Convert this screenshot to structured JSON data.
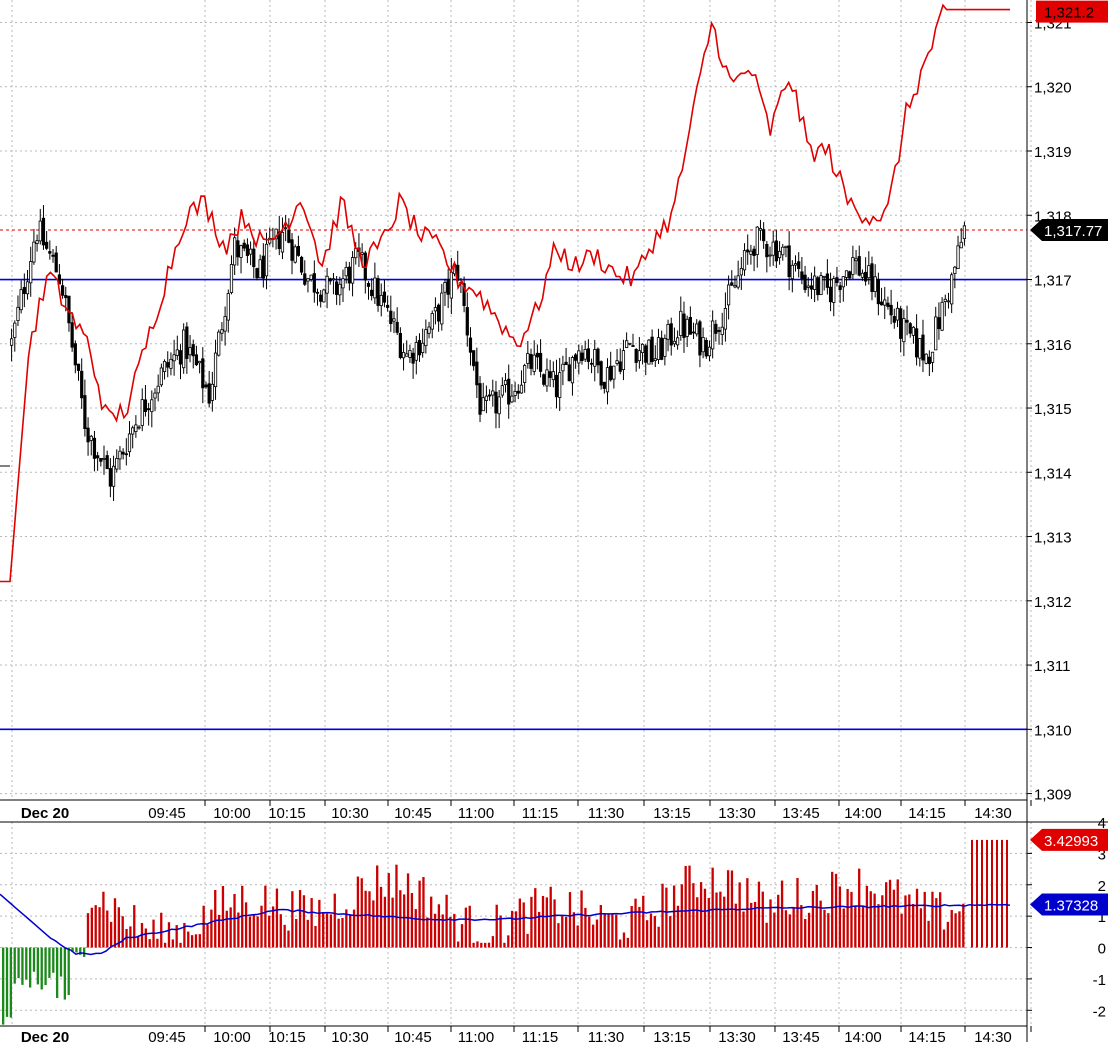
{
  "colors": {
    "background": "#ffffff",
    "grid": "#b8b8b8",
    "candle": "#000000",
    "price_line": "#e00000",
    "level_line": "#0000e0",
    "hist_positive": "#cc0000",
    "hist_negative": "#1a8a1a",
    "avg_line": "#0000cc"
  },
  "chart_data": [
    {
      "type": "candlestick",
      "panel": "price",
      "y_ticks": [
        "1,321",
        "1,320",
        "1,319",
        "1,318",
        "1,317",
        "1,316",
        "1,315",
        "1,314",
        "1,313",
        "1,312",
        "1,311",
        "1,310",
        "1,309"
      ],
      "ylim": [
        1308.9,
        1321.35
      ],
      "x_date_label": "Dec 20",
      "x_ticks": [
        "09:45",
        "10:00",
        "10:15",
        "10:30",
        "10:45",
        "11:00",
        "11:15",
        "11:30",
        "13:15",
        "13:30",
        "13:45",
        "14:00",
        "14:15",
        "14:30"
      ],
      "horizontal_levels": [
        1317.0,
        1310.0
      ],
      "last_price_label": "1,317.77",
      "last_price": 1317.77,
      "red_line_label": "1,321.2",
      "red_line_last": 1321.2,
      "red_line_anchors": [
        [
          0,
          1312.3
        ],
        [
          1,
          1316.0
        ],
        [
          2,
          1317.1
        ],
        [
          3,
          1316.5
        ],
        [
          4,
          1316.0
        ],
        [
          5,
          1314.8
        ],
        [
          6,
          1315.0
        ],
        [
          7,
          1316.0
        ],
        [
          8,
          1317.0
        ],
        [
          9,
          1318.0
        ],
        [
          10,
          1318.2
        ],
        [
          11,
          1317.5
        ],
        [
          12,
          1318.0
        ],
        [
          13,
          1317.5
        ],
        [
          14,
          1317.8
        ],
        [
          15,
          1318.3
        ],
        [
          16,
          1317.2
        ],
        [
          17,
          1318.2
        ],
        [
          18,
          1317.3
        ],
        [
          19,
          1317.5
        ],
        [
          20,
          1318.2
        ],
        [
          21,
          1317.7
        ],
        [
          22,
          1317.5
        ],
        [
          23,
          1317.0
        ],
        [
          24,
          1316.8
        ],
        [
          25,
          1316.4
        ],
        [
          26,
          1316.0
        ],
        [
          27,
          1316.5
        ],
        [
          28,
          1317.5
        ],
        [
          29,
          1317.2
        ],
        [
          30,
          1317.4
        ],
        [
          31,
          1317.1
        ],
        [
          32,
          1317.0
        ],
        [
          33,
          1317.6
        ],
        [
          34,
          1318.0
        ],
        [
          35,
          1319.5
        ],
        [
          36,
          1321.0
        ],
        [
          37,
          1320.0
        ],
        [
          38,
          1320.3
        ],
        [
          39,
          1319.3
        ],
        [
          40,
          1320.2
        ],
        [
          41,
          1319.0
        ],
        [
          42,
          1319.0
        ],
        [
          43,
          1318.2
        ],
        [
          44,
          1318.0
        ],
        [
          45,
          1318.0
        ],
        [
          46,
          1319.6
        ],
        [
          47,
          1320.4
        ],
        [
          48,
          1321.2
        ],
        [
          49,
          1321.2
        ]
      ],
      "candle_anchors": [
        [
          0,
          1316.0
        ],
        [
          2,
          1317.8
        ],
        [
          4,
          1317.0
        ],
        [
          6,
          1314.7
        ],
        [
          8,
          1313.9
        ],
        [
          10,
          1314.8
        ],
        [
          12,
          1315.5
        ],
        [
          14,
          1316.0
        ],
        [
          16,
          1315.2
        ],
        [
          18,
          1317.5
        ],
        [
          20,
          1317.1
        ],
        [
          22,
          1317.8
        ],
        [
          24,
          1317.0
        ],
        [
          26,
          1316.8
        ],
        [
          28,
          1317.3
        ],
        [
          30,
          1316.6
        ],
        [
          32,
          1315.8
        ],
        [
          34,
          1316.3
        ],
        [
          36,
          1317.2
        ],
        [
          38,
          1314.9
        ],
        [
          40,
          1315.2
        ],
        [
          42,
          1315.7
        ],
        [
          44,
          1315.3
        ],
        [
          46,
          1316.0
        ],
        [
          48,
          1315.5
        ],
        [
          50,
          1316.0
        ],
        [
          52,
          1315.8
        ],
        [
          54,
          1316.3
        ],
        [
          56,
          1316.0
        ],
        [
          58,
          1316.7
        ],
        [
          60,
          1317.6
        ],
        [
          62,
          1317.5
        ],
        [
          64,
          1317.0
        ],
        [
          66,
          1316.8
        ],
        [
          68,
          1317.3
        ],
        [
          70,
          1316.8
        ],
        [
          72,
          1316.2
        ],
        [
          74,
          1315.8
        ],
        [
          76,
          1317.0
        ],
        [
          77,
          1317.77
        ]
      ]
    },
    {
      "type": "bar",
      "panel": "indicator",
      "y_ticks": [
        "4",
        "3",
        "2",
        "1",
        "0",
        "-1",
        "-2"
      ],
      "ylim": [
        -2.5,
        4.0
      ],
      "x_date_label": "Dec 20",
      "x_ticks": [
        "09:45",
        "10:00",
        "10:15",
        "10:30",
        "10:45",
        "11:00",
        "11:15",
        "11:30",
        "13:15",
        "13:30",
        "13:45",
        "14:00",
        "14:15",
        "14:30"
      ],
      "bar_value_label": "3.42993",
      "bar_value_last": 3.42993,
      "avg_value_label": "1.37328",
      "avg_value_last": 1.37328,
      "avg_line": [
        [
          0,
          1.7
        ],
        [
          2,
          1.0
        ],
        [
          4,
          0.3
        ],
        [
          6,
          -0.2
        ],
        [
          8,
          -0.2
        ],
        [
          10,
          0.3
        ],
        [
          14,
          0.6
        ],
        [
          18,
          0.9
        ],
        [
          22,
          1.2
        ],
        [
          26,
          1.1
        ],
        [
          30,
          1.0
        ],
        [
          34,
          0.9
        ],
        [
          40,
          0.9
        ],
        [
          44,
          1.0
        ],
        [
          50,
          1.1
        ],
        [
          60,
          1.25
        ],
        [
          80,
          1.37
        ]
      ]
    }
  ]
}
